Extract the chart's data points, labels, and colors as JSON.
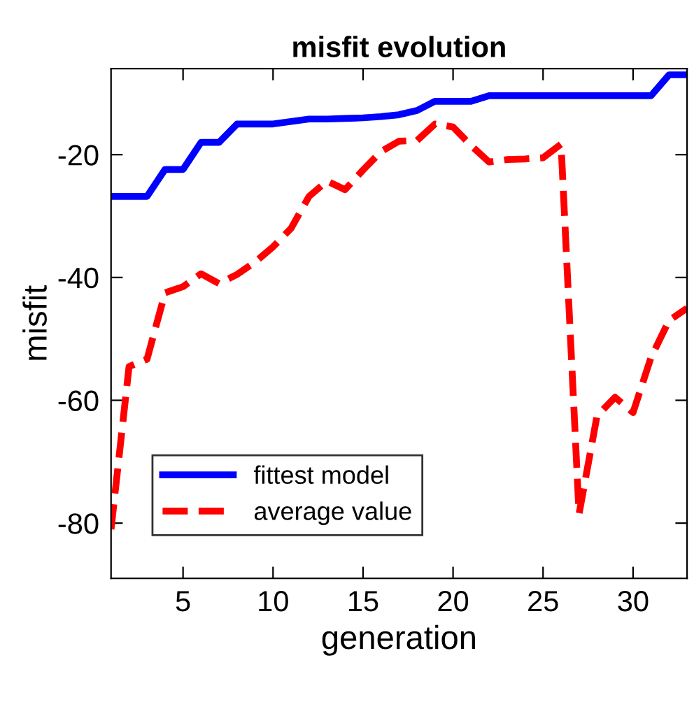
{
  "chart_data": {
    "type": "line",
    "title": "misfit evolution",
    "xlabel": "generation",
    "ylabel": "misfit",
    "x": [
      1,
      2,
      3,
      4,
      5,
      6,
      7,
      8,
      9,
      10,
      11,
      12,
      13,
      14,
      15,
      16,
      17,
      18,
      19,
      20,
      21,
      22,
      23,
      24,
      25,
      26,
      27,
      28,
      29,
      30,
      31,
      32,
      33
    ],
    "series": [
      {
        "name": "fittest model",
        "color": "#0000ff",
        "line_style": "solid",
        "values": [
          -26.8,
          -26.8,
          -26.8,
          -22.4,
          -22.4,
          -18,
          -18,
          -15,
          -15,
          -15,
          -14.6,
          -14.2,
          -14.2,
          -14.1,
          -14,
          -13.8,
          -13.5,
          -12.8,
          -11.3,
          -11.3,
          -11.3,
          -10.4,
          -10.4,
          -10.4,
          -10.4,
          -10.4,
          -10.4,
          -10.4,
          -10.4,
          -10.4,
          -10.4,
          -7,
          -7
        ]
      },
      {
        "name": "average value",
        "color": "#ff0000",
        "line_style": "dashed",
        "values": [
          -81,
          -54.5,
          -53.3,
          -42.5,
          -41.5,
          -39.4,
          -41,
          -39.5,
          -37.5,
          -35,
          -32,
          -26.8,
          -24.3,
          -25.7,
          -22.5,
          -19.5,
          -17.8,
          -17.7,
          -15,
          -15.5,
          -18.5,
          -21.2,
          -20.8,
          -20.7,
          -20.5,
          -18.3,
          -78.5,
          -62.5,
          -59.5,
          -62,
          -53,
          -47,
          -45
        ]
      }
    ],
    "xlim": [
      1,
      33
    ],
    "ylim": [
      -89,
      -6
    ],
    "xticks": [
      5,
      10,
      15,
      20,
      25,
      30
    ],
    "yticks": [
      -80,
      -60,
      -40,
      -20
    ],
    "grid": false,
    "legend": "bottom left",
    "marker": "none"
  }
}
